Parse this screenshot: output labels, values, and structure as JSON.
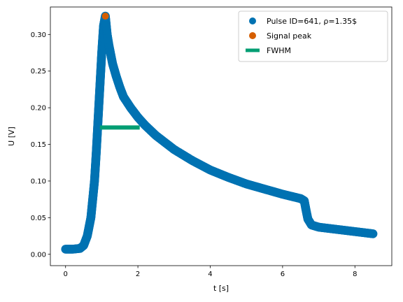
{
  "chart_data": {
    "type": "scatter",
    "xlabel": "t [s]",
    "ylabel": "U [V]",
    "xlim": [
      -0.42,
      9.02
    ],
    "ylim": [
      -0.0155,
      0.3375
    ],
    "xticks": [
      0,
      2,
      4,
      6,
      8
    ],
    "yticks": [
      0.0,
      0.05,
      0.1,
      0.15,
      0.2,
      0.25,
      0.3
    ],
    "xtick_labels": [
      "0",
      "2",
      "4",
      "6",
      "8"
    ],
    "ytick_labels": [
      "0.00",
      "0.05",
      "0.10",
      "0.15",
      "0.20",
      "0.25",
      "0.30"
    ],
    "grid": false,
    "legend_position": "top-right",
    "series": [
      {
        "name": "Pulse ID=641, ρ=1.35$",
        "kind": "scatter",
        "color": "#0072b2",
        "points": [
          [
            0.0,
            0.007
          ],
          [
            0.2,
            0.007
          ],
          [
            0.4,
            0.008
          ],
          [
            0.5,
            0.012
          ],
          [
            0.6,
            0.025
          ],
          [
            0.7,
            0.05
          ],
          [
            0.8,
            0.1
          ],
          [
            0.85,
            0.14
          ],
          [
            0.9,
            0.185
          ],
          [
            0.95,
            0.23
          ],
          [
            1.0,
            0.275
          ],
          [
            1.05,
            0.312
          ],
          [
            1.1,
            0.325
          ],
          [
            1.15,
            0.3
          ],
          [
            1.2,
            0.285
          ],
          [
            1.3,
            0.26
          ],
          [
            1.4,
            0.243
          ],
          [
            1.5,
            0.228
          ],
          [
            1.6,
            0.215
          ],
          [
            1.8,
            0.2
          ],
          [
            2.0,
            0.187
          ],
          [
            2.2,
            0.176
          ],
          [
            2.5,
            0.162
          ],
          [
            3.0,
            0.143
          ],
          [
            3.5,
            0.128
          ],
          [
            4.0,
            0.115
          ],
          [
            4.5,
            0.105
          ],
          [
            5.0,
            0.096
          ],
          [
            5.5,
            0.089
          ],
          [
            6.0,
            0.082
          ],
          [
            6.5,
            0.076
          ],
          [
            6.6,
            0.073
          ],
          [
            6.65,
            0.06
          ],
          [
            6.7,
            0.048
          ],
          [
            6.8,
            0.04
          ],
          [
            7.0,
            0.037
          ],
          [
            7.5,
            0.034
          ],
          [
            8.0,
            0.031
          ],
          [
            8.5,
            0.028
          ]
        ]
      },
      {
        "name": "Signal peak",
        "kind": "scatter",
        "color": "#d55e00",
        "points": [
          [
            1.1,
            0.325
          ]
        ]
      },
      {
        "name": "FWHM",
        "kind": "line",
        "color": "#009e73",
        "points": [
          [
            0.95,
            0.173
          ],
          [
            2.05,
            0.173
          ]
        ]
      }
    ]
  }
}
